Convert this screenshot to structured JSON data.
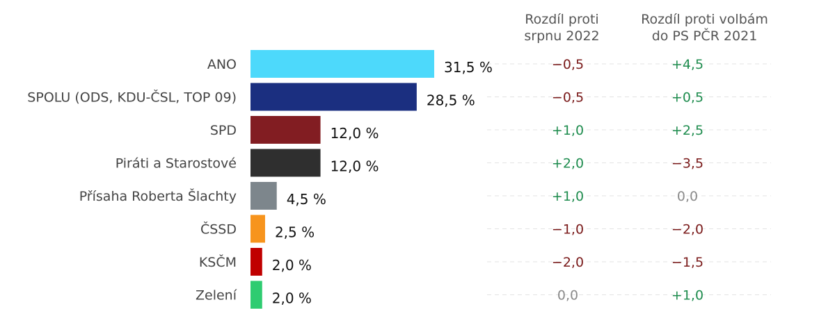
{
  "headers": {
    "diff_august_line1": "Rozdíl proti",
    "diff_august_line2": "srpnu 2022",
    "diff_2021_line1": "Rozdíl proti volbám",
    "diff_2021_line2": "do PS PČR 2021"
  },
  "chart_data": {
    "type": "bar",
    "orientation": "horizontal",
    "title": "",
    "xlabel": "",
    "ylabel": "",
    "grid": false,
    "xlim": [
      0,
      35
    ],
    "categories": [
      "ANO",
      "SPOLU (ODS, KDU-ČSL, TOP 09)",
      "SPD",
      "Piráti a Starostové",
      "Přísaha Roberta Šlachty",
      "ČSSD",
      "KSČM",
      "Zelení"
    ],
    "values": [
      31.5,
      28.5,
      12.0,
      12.0,
      4.5,
      2.5,
      2.0,
      2.0
    ],
    "value_labels": [
      "31,5 %",
      "28,5 %",
      "12,0 %",
      "12,0 %",
      "4,5 %",
      "2,5 %",
      "2,0 %",
      "2,0 %"
    ],
    "bar_colors": [
      "#4dd9fb",
      "#1b2f80",
      "#821d22",
      "#2f2f2f",
      "#7d868c",
      "#f7941d",
      "#c00000",
      "#2ecc71"
    ],
    "diff_august": [
      "−0,5",
      "−0,5",
      "+1,0",
      "+2,0",
      "+1,0",
      "−1,0",
      "−2,0",
      "0,0"
    ],
    "diff_2021": [
      "+4,5",
      "+0,5",
      "+2,5",
      "−3,5",
      "0,0",
      "−2,0",
      "−1,5",
      "+1,0"
    ]
  },
  "colors": {
    "positive": "#1e8c4e",
    "negative": "#7a1a1a",
    "neutral": "#8a8a8a",
    "category_label": "#444444",
    "value_label": "#111111",
    "guide_line": "#e3e3e3"
  }
}
